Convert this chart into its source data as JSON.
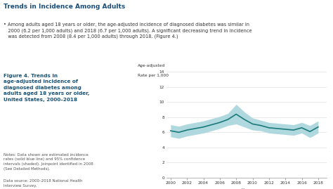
{
  "years": [
    2000,
    2001,
    2002,
    2003,
    2004,
    2005,
    2006,
    2007,
    2008,
    2009,
    2010,
    2011,
    2012,
    2013,
    2014,
    2015,
    2016,
    2017,
    2018
  ],
  "line": [
    6.2,
    6.0,
    6.3,
    6.5,
    6.7,
    7.0,
    7.3,
    7.7,
    8.4,
    7.7,
    7.1,
    6.9,
    6.6,
    6.5,
    6.4,
    6.3,
    6.6,
    6.1,
    6.7
  ],
  "ci_upper": [
    7.0,
    6.8,
    7.1,
    7.3,
    7.5,
    7.8,
    8.1,
    8.5,
    9.7,
    8.7,
    7.9,
    7.6,
    7.3,
    7.2,
    7.1,
    7.0,
    7.3,
    6.9,
    7.5
  ],
  "ci_lower": [
    5.4,
    5.2,
    5.5,
    5.7,
    5.9,
    6.2,
    6.5,
    6.9,
    7.1,
    6.7,
    6.3,
    6.2,
    5.9,
    5.8,
    5.7,
    5.6,
    5.9,
    5.3,
    5.9
  ],
  "line_color": "#1a7a7a",
  "ci_color": "#a8d4dc",
  "ylim": [
    0,
    14
  ],
  "yticks": [
    0,
    2,
    4,
    6,
    8,
    10,
    12,
    14
  ],
  "xticks": [
    2000,
    2002,
    2004,
    2006,
    2008,
    2010,
    2012,
    2014,
    2016,
    2018
  ],
  "ylabel_line1": "Age-adjusted",
  "ylabel_line2": "Rate per 1,000",
  "xlabel": "Year",
  "figure_caption": "Figure 4. Trends in\nage-adjusted incidence of\ndiagnosed diabetes among\nadults aged 18 years or older,\nUnited States, 2000–2018",
  "caption_color": "#1a5276",
  "text_color": "#333333",
  "title": "Trends in Incidence Among Adults",
  "bullet_text": "Among adults aged 18 years or older, the age-adjusted incidence of diagnosed diabetes was similar in\n  2000 (6.2 per 1,000 adults) and 2018 (6.7 per 1,000 adults). A significant decreasing trend in incidence\n  was detected from 2008 (8.4 per 1,000 adults) through 2018. (Figure 4.)",
  "notes_text": "Notes: Data shown are estimated incidence\nrates (solid blue line) and 95% confidence\nintervals (shaded). Joinpoint identified in 2008\n(See Detailed Methods).",
  "source_text": "Data source: 2000–2018 National Health\nInterview Survey.",
  "bg_color": "#ffffff"
}
